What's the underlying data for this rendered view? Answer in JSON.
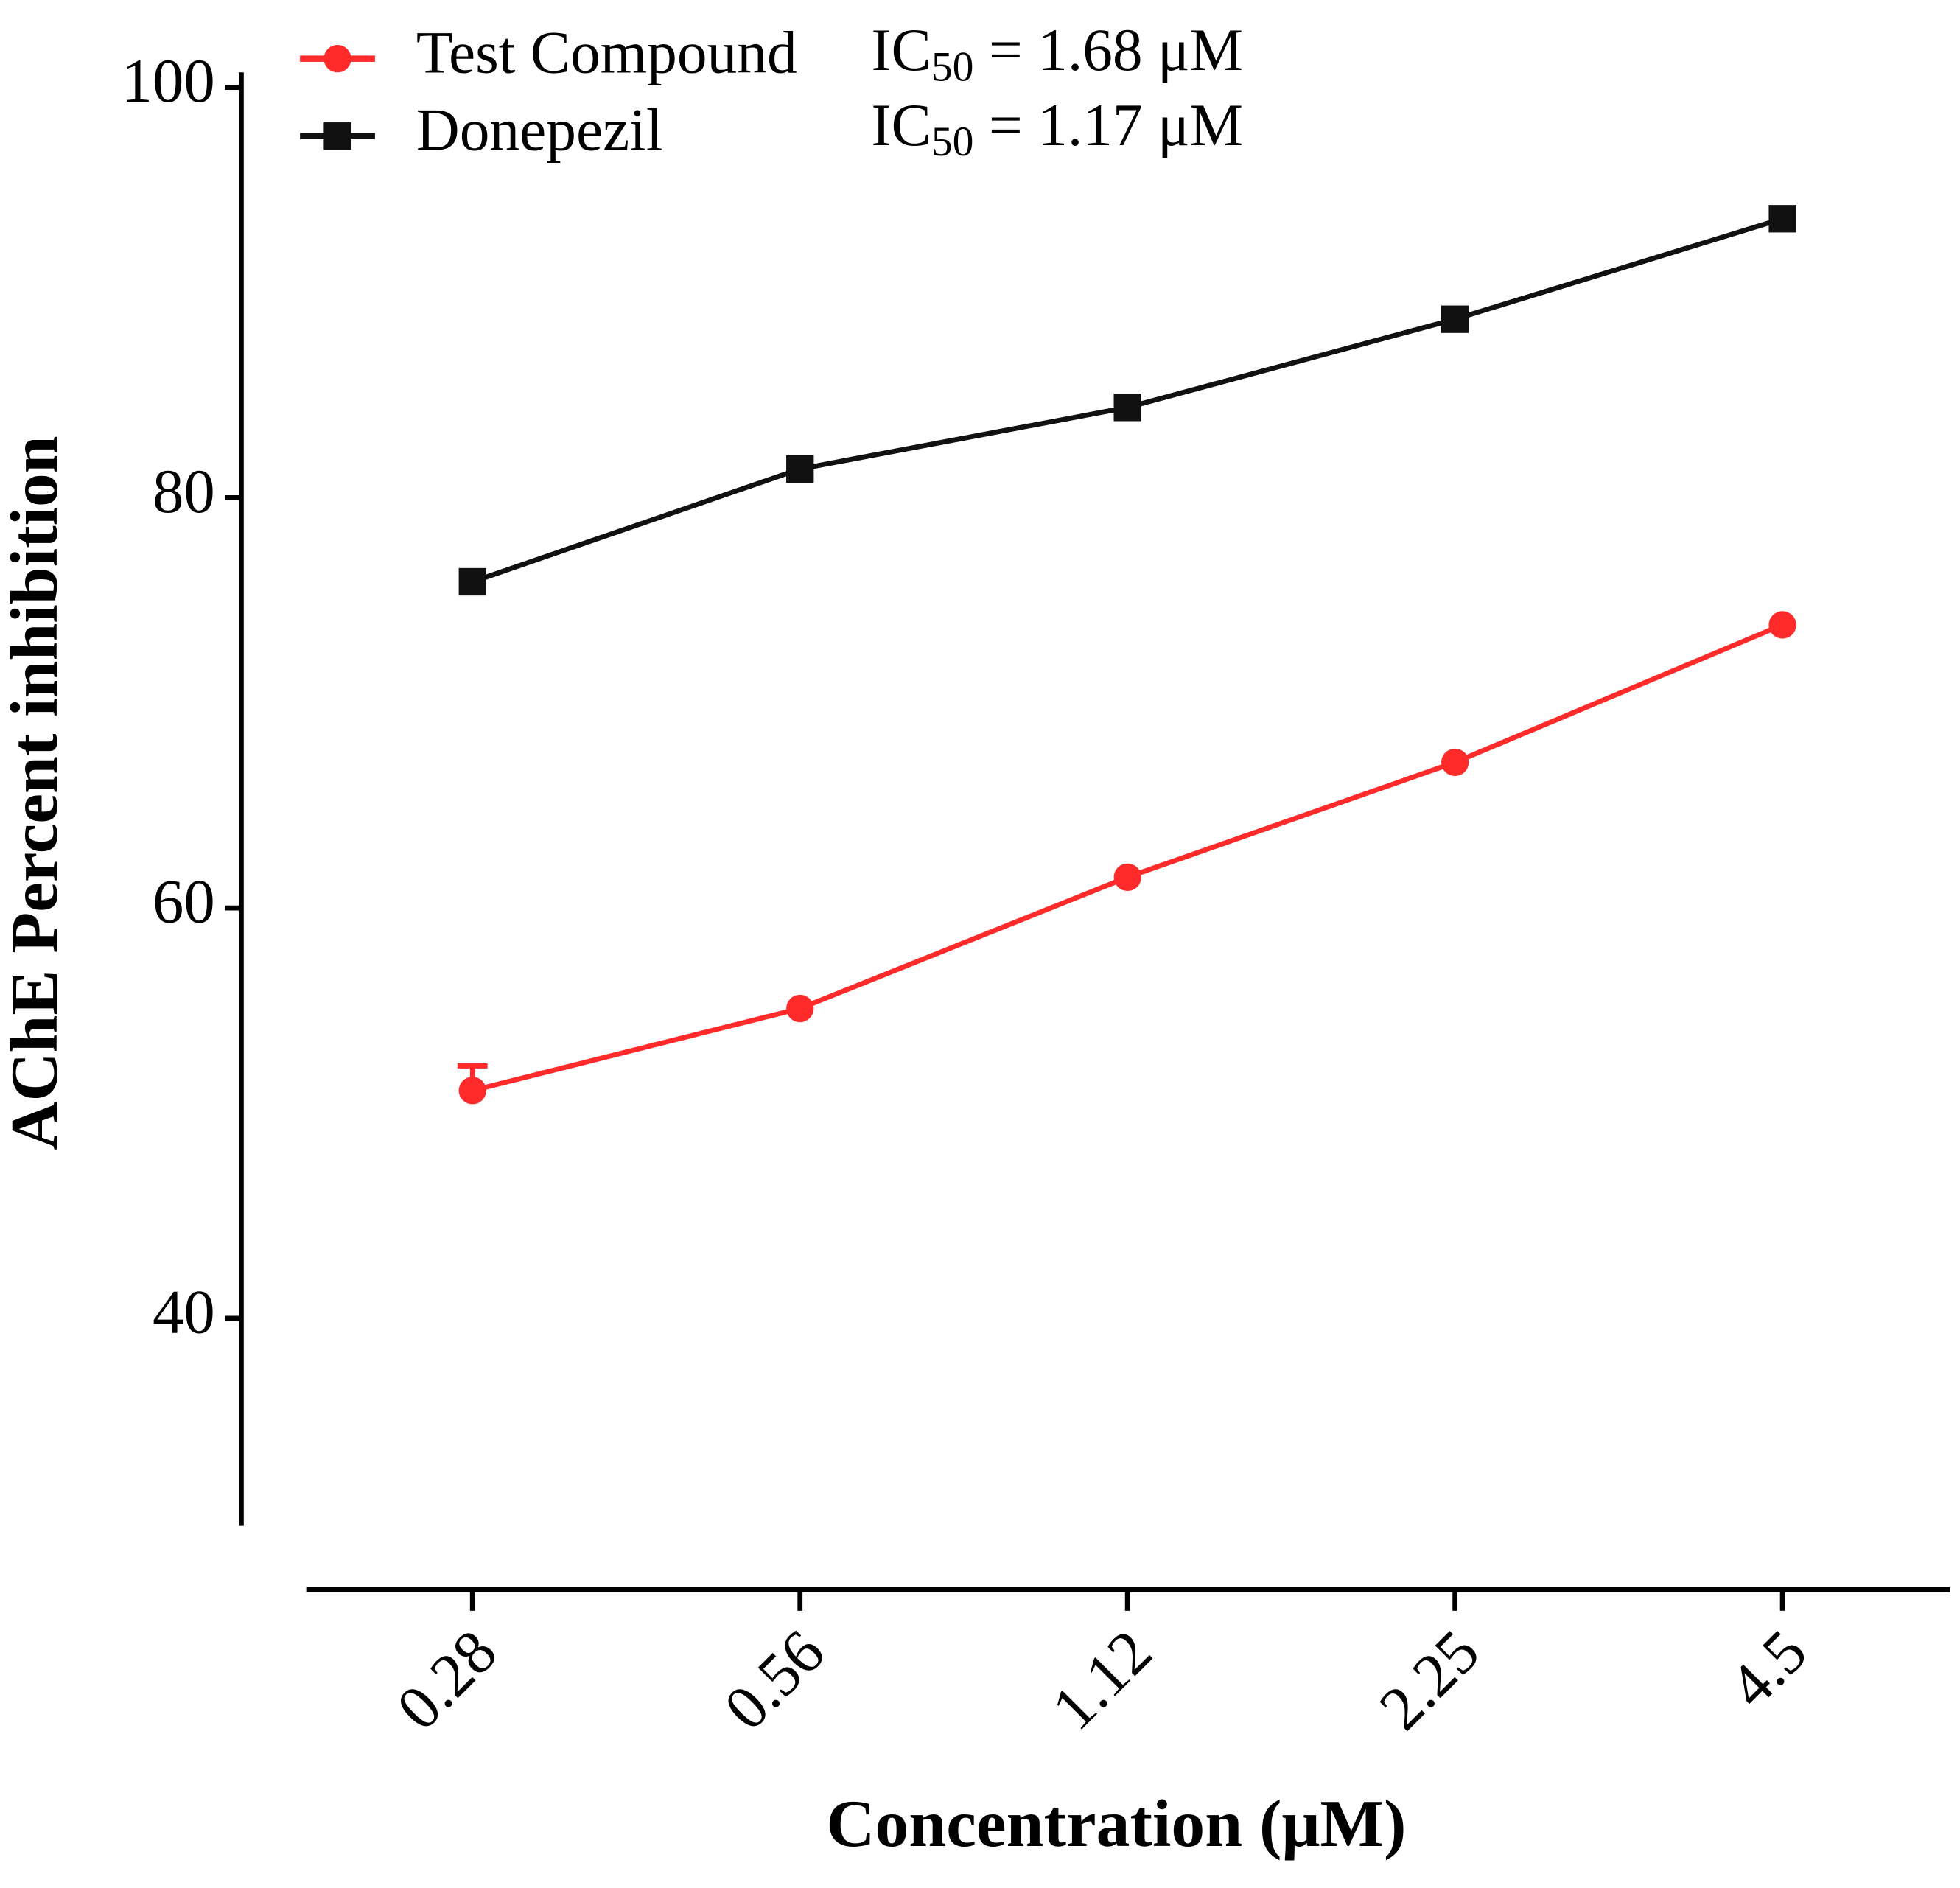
{
  "chart_data": {
    "type": "line",
    "x_label": "Concentration (μM)",
    "y_label": "AChE Percent inhibition",
    "categories": [
      "0.28",
      "0.56",
      "1.12",
      "2.25",
      "4.5"
    ],
    "series": [
      {
        "name": "Test Compound",
        "color": "#ff2a2a",
        "marker": "circle",
        "values": [
          51.1,
          55.1,
          61.5,
          67.1,
          73.8
        ],
        "errors": [
          1.2,
          null,
          null,
          null,
          null
        ]
      },
      {
        "name": "Donepezil",
        "color": "#111111",
        "marker": "square",
        "values": [
          75.9,
          81.4,
          84.4,
          88.7,
          93.6
        ]
      }
    ],
    "annotations": [
      {
        "main": "IC",
        "sub": "50",
        "rest": " = 1.68 μM"
      },
      {
        "main": "IC",
        "sub": "50",
        "rest": " = 1.17 μM"
      }
    ],
    "ylim": [
      30,
      100
    ],
    "yticks": [
      40,
      60,
      80,
      100
    ],
    "grid": false,
    "legend": "top-left"
  }
}
